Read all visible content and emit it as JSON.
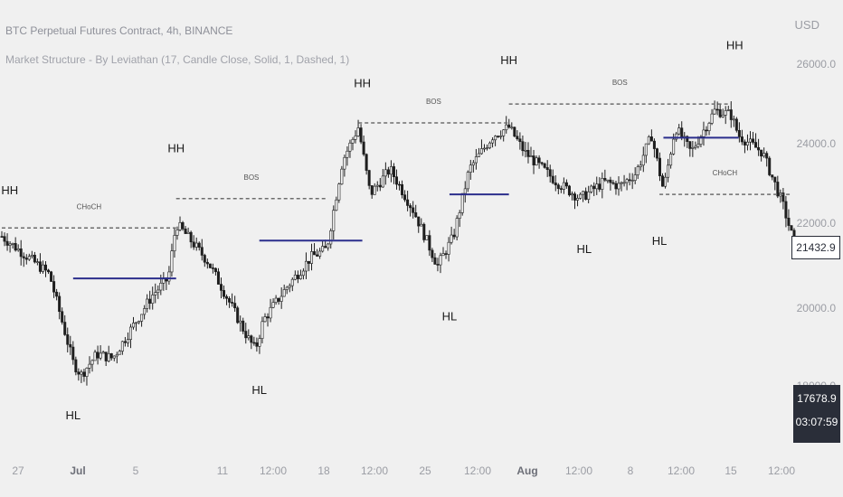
{
  "header": {
    "title": "BTC Perpetual Futures Contract, 4h, BINANCE",
    "indicator": "Market Structure - By Leviathan (17, Candle Close, Solid, 1, Dashed, 1)"
  },
  "price_axis": {
    "currency": "USD",
    "ticks": [
      "26000.0",
      "24000.0",
      "22000.0",
      "20000.0",
      "18000.0"
    ],
    "last_price": "21432.9",
    "cursor_price": "17678.9",
    "countdown": "03:07:59"
  },
  "time_axis": {
    "ticks": [
      {
        "label": "27",
        "bold": false
      },
      {
        "label": "Jul",
        "bold": true
      },
      {
        "label": "5",
        "bold": false
      },
      {
        "label": "11",
        "bold": false
      },
      {
        "label": "12:00",
        "bold": false
      },
      {
        "label": "18",
        "bold": false
      },
      {
        "label": "12:00",
        "bold": false
      },
      {
        "label": "25",
        "bold": false
      },
      {
        "label": "12:00",
        "bold": false
      },
      {
        "label": "Aug",
        "bold": true
      },
      {
        "label": "12:00",
        "bold": false
      },
      {
        "label": "8",
        "bold": false
      },
      {
        "label": "12:00",
        "bold": false
      },
      {
        "label": "15",
        "bold": false
      },
      {
        "label": "12:00",
        "bold": false
      }
    ]
  },
  "colors": {
    "background": "#f0f0f0",
    "candle": "#1e1e1e",
    "structure_line": "#6d6d6d",
    "range_line": "#2b2e8c",
    "label": "#1a1a1a",
    "small_label": "#555555"
  },
  "chart_data": {
    "type": "candlestick",
    "title": "BTC Perpetual Futures Contract, 4h, BINANCE",
    "ylim": [
      17000,
      27000
    ],
    "y_ticks": [
      26000,
      24000,
      22000,
      20000,
      18000
    ],
    "price_path": [
      [
        0.0,
        21600
      ],
      [
        0.06,
        20700
      ],
      [
        0.09,
        18600
      ],
      [
        0.1,
        18300
      ],
      [
        0.12,
        18800
      ],
      [
        0.14,
        18700
      ],
      [
        0.16,
        19300
      ],
      [
        0.19,
        20200
      ],
      [
        0.21,
        20600
      ],
      [
        0.22,
        21900
      ],
      [
        0.23,
        21700
      ],
      [
        0.26,
        21000
      ],
      [
        0.28,
        20300
      ],
      [
        0.31,
        19200
      ],
      [
        0.32,
        18900
      ],
      [
        0.33,
        19600
      ],
      [
        0.36,
        20400
      ],
      [
        0.39,
        21100
      ],
      [
        0.41,
        21300
      ],
      [
        0.43,
        23400
      ],
      [
        0.45,
        24200
      ],
      [
        0.465,
        22600
      ],
      [
        0.49,
        23200
      ],
      [
        0.52,
        22200
      ],
      [
        0.55,
        20900
      ],
      [
        0.57,
        21600
      ],
      [
        0.59,
        23200
      ],
      [
        0.62,
        24000
      ],
      [
        0.64,
        24200
      ],
      [
        0.66,
        23600
      ],
      [
        0.7,
        22900
      ],
      [
        0.73,
        22500
      ],
      [
        0.76,
        22900
      ],
      [
        0.78,
        22800
      ],
      [
        0.8,
        23100
      ],
      [
        0.82,
        24000
      ],
      [
        0.835,
        22700
      ],
      [
        0.85,
        24200
      ],
      [
        0.87,
        23600
      ],
      [
        0.9,
        24600
      ],
      [
        0.92,
        24500
      ],
      [
        0.93,
        24000
      ],
      [
        0.96,
        23600
      ],
      [
        0.985,
        22400
      ],
      [
        1.0,
        21430
      ]
    ],
    "structure_lines": [
      {
        "label": "CHoCH",
        "price": 21800,
        "x": [
          0.0,
          0.22
        ]
      },
      {
        "label": "BOS",
        "price": 22500,
        "x": [
          0.22,
          0.41
        ]
      },
      {
        "label": "BOS",
        "price": 24300,
        "x": [
          0.45,
          0.64
        ]
      },
      {
        "label": "BOS",
        "price": 24750,
        "x": [
          0.64,
          0.92
        ]
      },
      {
        "label": "CHoCH",
        "price": 22600,
        "x": [
          0.83,
          0.995
        ]
      }
    ],
    "range_levels": [
      {
        "price": 20600,
        "x": [
          0.09,
          0.22
        ]
      },
      {
        "price": 21500,
        "x": [
          0.325,
          0.455
        ]
      },
      {
        "price": 22600,
        "x": [
          0.565,
          0.64
        ]
      },
      {
        "price": 23950,
        "x": [
          0.835,
          0.93
        ]
      }
    ],
    "swing_labels": [
      {
        "text": "HH",
        "x": 0.01,
        "price": 22600
      },
      {
        "text": "HL",
        "x": 0.09,
        "price": 17250
      },
      {
        "text": "HH",
        "x": 0.22,
        "price": 23600
      },
      {
        "text": "HL",
        "x": 0.325,
        "price": 17850
      },
      {
        "text": "HH",
        "x": 0.455,
        "price": 25150
      },
      {
        "text": "HL",
        "x": 0.565,
        "price": 19600
      },
      {
        "text": "HH",
        "x": 0.64,
        "price": 25700
      },
      {
        "text": "HL",
        "x": 0.735,
        "price": 21200
      },
      {
        "text": "HL",
        "x": 0.83,
        "price": 21400
      },
      {
        "text": "HH",
        "x": 0.925,
        "price": 26050
      }
    ]
  }
}
